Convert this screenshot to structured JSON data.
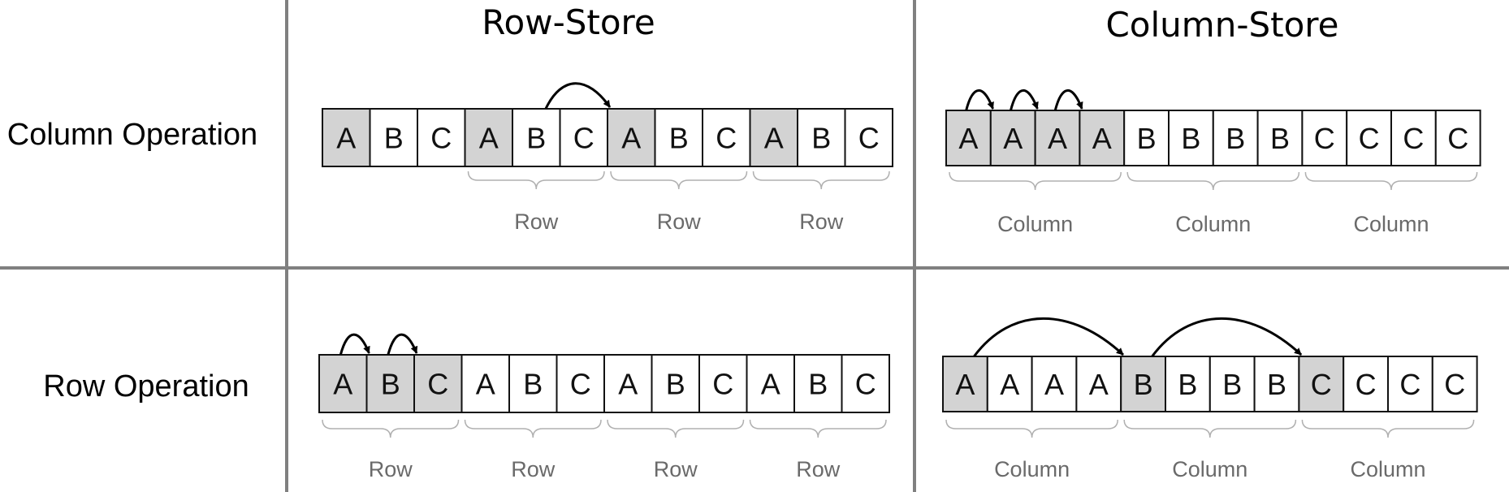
{
  "headers": {
    "row_store": "Row-Store",
    "column_store": "Column-Store"
  },
  "row_labels": {
    "column_operation": "Column Operation",
    "row_operation": "Row Operation"
  },
  "panels": {
    "row_store_column_op": {
      "cells": [
        "A",
        "B",
        "C",
        "A",
        "B",
        "C",
        "A",
        "B",
        "C",
        "A",
        "B",
        "C"
      ],
      "highlighted": [
        0,
        3,
        6,
        9
      ],
      "groups": [
        {
          "label": "Row",
          "cells": [
            3,
            5
          ]
        },
        {
          "label": "Row",
          "cells": [
            6,
            8
          ]
        },
        {
          "label": "Row",
          "cells": [
            9,
            11
          ]
        }
      ],
      "arrows": [
        [
          4,
          6
        ]
      ]
    },
    "column_store_column_op": {
      "cells": [
        "A",
        "A",
        "A",
        "A",
        "B",
        "B",
        "B",
        "B",
        "C",
        "C",
        "C",
        "C"
      ],
      "highlighted": [
        0,
        1,
        2,
        3
      ],
      "groups": [
        {
          "label": "Column",
          "cells": [
            0,
            3
          ]
        },
        {
          "label": "Column",
          "cells": [
            4,
            7
          ]
        },
        {
          "label": "Column",
          "cells": [
            8,
            11
          ]
        }
      ],
      "arrows": [
        [
          0,
          1
        ],
        [
          1,
          2
        ],
        [
          2,
          3
        ]
      ]
    },
    "row_store_row_op": {
      "cells": [
        "A",
        "B",
        "C",
        "A",
        "B",
        "C",
        "A",
        "B",
        "C",
        "A",
        "B",
        "C"
      ],
      "highlighted": [
        0,
        1,
        2
      ],
      "groups": [
        {
          "label": "Row",
          "cells": [
            0,
            2
          ]
        },
        {
          "label": "Row",
          "cells": [
            3,
            5
          ]
        },
        {
          "label": "Row",
          "cells": [
            6,
            8
          ]
        },
        {
          "label": "Row",
          "cells": [
            9,
            11
          ]
        }
      ],
      "arrows": [
        [
          0,
          1
        ],
        [
          1,
          2
        ]
      ]
    },
    "column_store_row_op": {
      "cells": [
        "A",
        "A",
        "A",
        "A",
        "B",
        "B",
        "B",
        "B",
        "C",
        "C",
        "C",
        "C"
      ],
      "highlighted": [
        0,
        4,
        8
      ],
      "groups": [
        {
          "label": "Column",
          "cells": [
            0,
            3
          ]
        },
        {
          "label": "Column",
          "cells": [
            4,
            7
          ]
        },
        {
          "label": "Column",
          "cells": [
            8,
            11
          ]
        }
      ],
      "arrows": [
        [
          0,
          4
        ],
        [
          4,
          8
        ]
      ]
    }
  },
  "colors": {
    "highlight_fill": "#d3d3d3",
    "cell_fill": "#ffffff",
    "cell_stroke": "#111111",
    "divider": "#808080",
    "brace": "#b0b0b0",
    "group_label": "#6a6a6a",
    "arrow": "#000000"
  }
}
